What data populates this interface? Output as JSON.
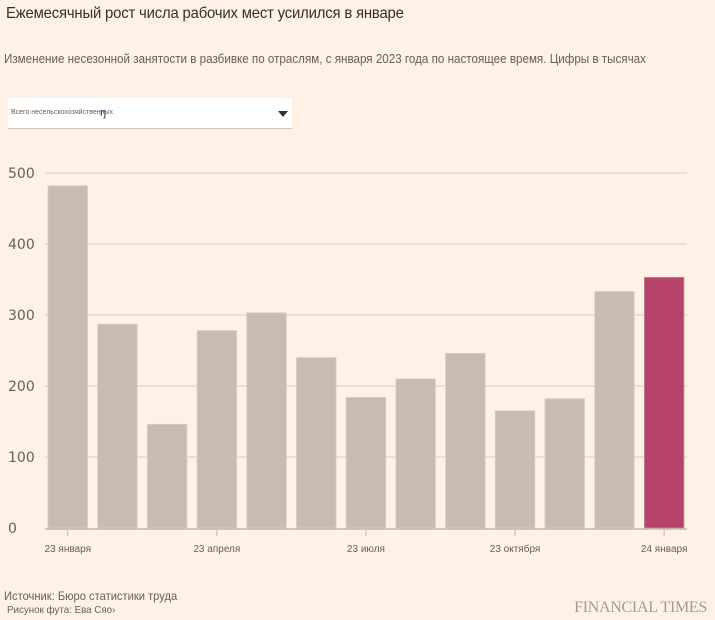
{
  "header": {
    "title": "Ежемесячный рост числа рабочих мест усилился в январе",
    "subtitle": "Изменение несезонной занятости в разбивке по отраслям, с января 2023 года по настоящее время. Цифры в тысячах"
  },
  "filter": {
    "selected": "Всего несельскохозяйственных",
    "cursor": "ŋ",
    "icon": "chevron-down-icon"
  },
  "colors": {
    "background": "#fff1e5",
    "bar": "#c7bcb3",
    "highlight": "#b5436a",
    "grid": "#e0d4c8",
    "axis": "#c2b7ad"
  },
  "chart_data": {
    "type": "bar",
    "title": "Ежемесячный рост числа рабочих мест усилился в январе",
    "xlabel": "",
    "ylabel": "",
    "ylim": [
      0,
      500
    ],
    "yticks": [
      0,
      100,
      200,
      300,
      400,
      500
    ],
    "grid": true,
    "categories": [
      "2023-01",
      "2023-02",
      "2023-03",
      "2023-04",
      "2023-05",
      "2023-06",
      "2023-07",
      "2023-08",
      "2023-09",
      "2023-10",
      "2023-11",
      "2023-12",
      "2024-01"
    ],
    "values": [
      482,
      287,
      146,
      278,
      303,
      240,
      184,
      210,
      246,
      165,
      182,
      333,
      353
    ],
    "highlight_index": 12,
    "xtick_labels": [
      {
        "index": 0,
        "label": "23 января"
      },
      {
        "index": 3,
        "label": "23 апреля"
      },
      {
        "index": 6,
        "label": "23 июля"
      },
      {
        "index": 9,
        "label": "23 октября"
      },
      {
        "index": 12,
        "label": "24 января"
      }
    ],
    "units": "тысячи"
  },
  "footer": {
    "source": "Источник: Бюро статистики труда",
    "credit": "Рисунок фута: Ева Сяо›",
    "brand": "FINANCIAL TIMES"
  }
}
